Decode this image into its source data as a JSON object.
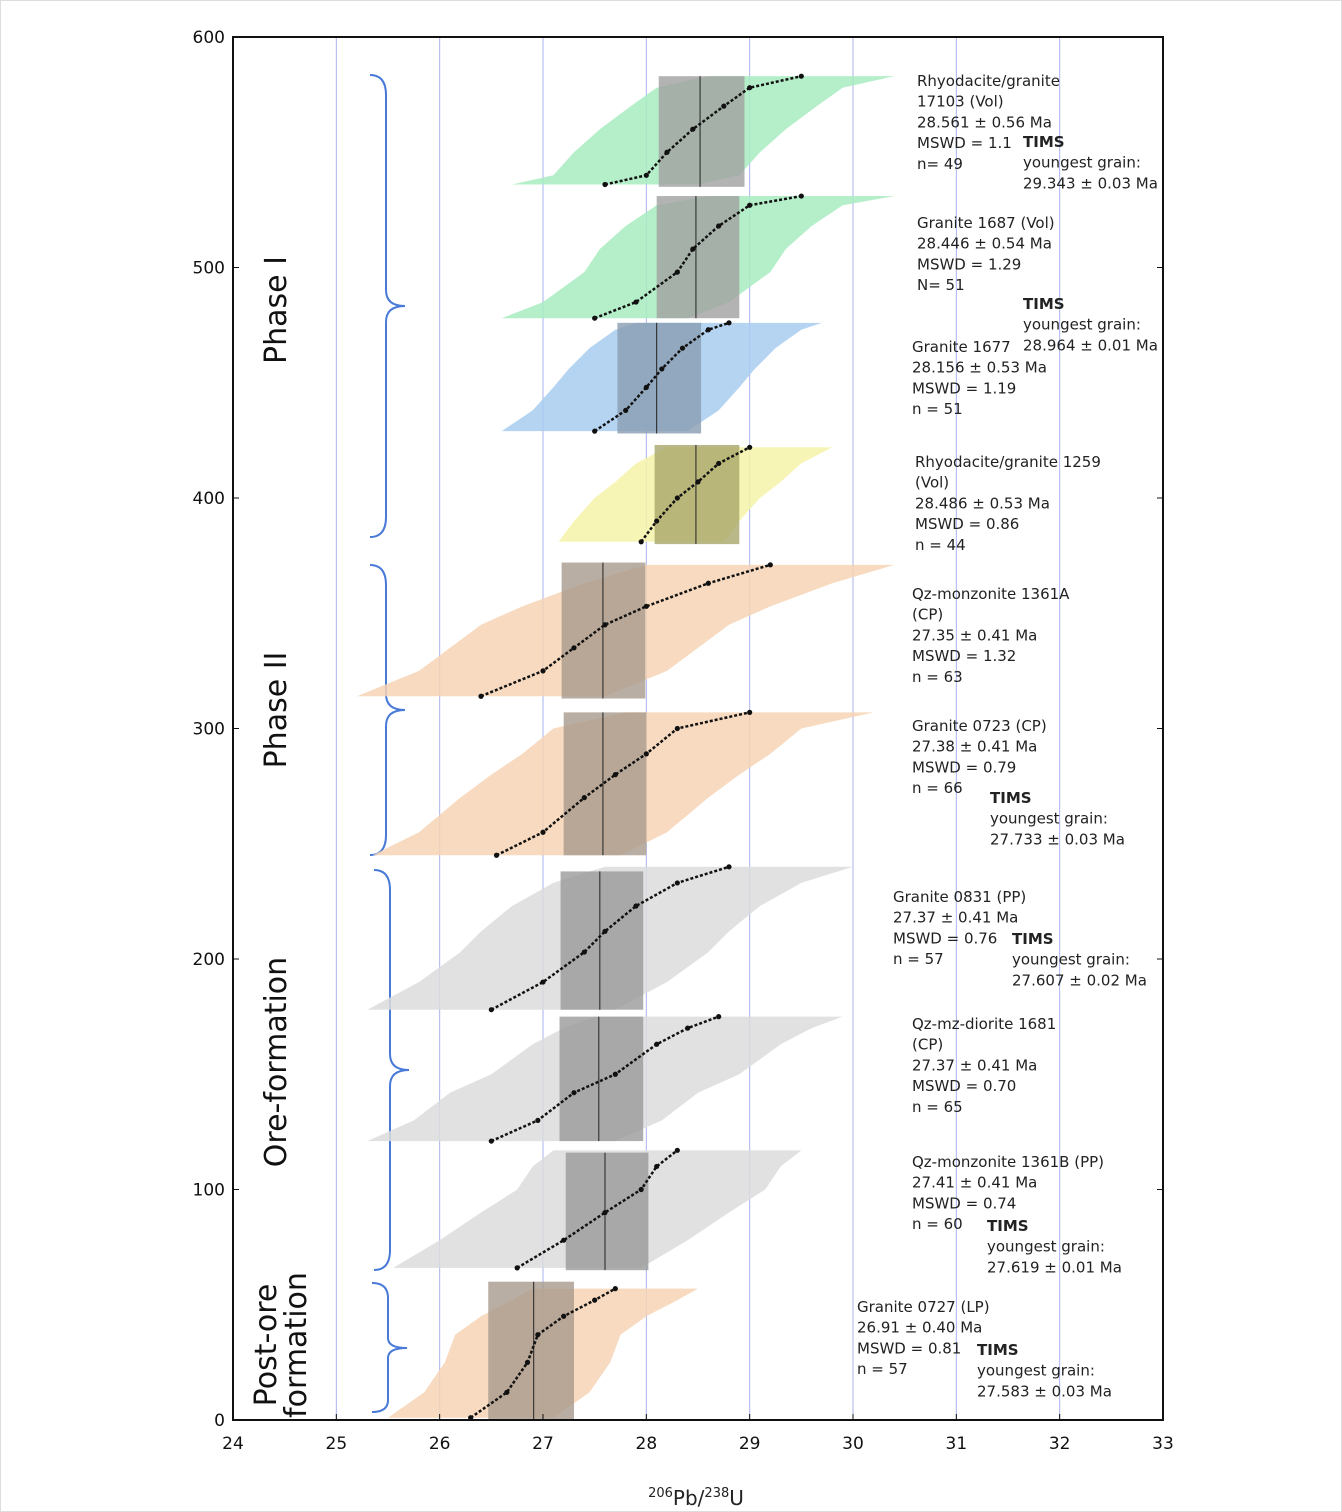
{
  "chart_data": {
    "type": "ranked-age",
    "xlabel_parts": [
      "206",
      "Pb/",
      "238",
      "U"
    ],
    "xlim": [
      24,
      33
    ],
    "xticks": [
      24,
      25,
      26,
      27,
      28,
      29,
      30,
      31,
      32,
      33
    ],
    "ylim": [
      0,
      600
    ],
    "yticks": [
      0,
      100,
      200,
      300,
      400,
      500,
      600
    ],
    "grid": true,
    "grid_color": "#aab4ee",
    "groups": [
      "Phase I",
      "Phase II",
      "Ore-formation",
      [
        "Post-ore",
        "formation"
      ]
    ],
    "samples": [
      {
        "label": [
          "Rhyodacite/granite",
          "17103 (Vol)",
          "28.561 ± 0.56 Ma",
          "MSWD = 1.1",
          "n= 49"
        ],
        "tims": [
          "TIMS",
          "youngest grain:",
          "29.343 ± 0.03 Ma"
        ],
        "y_range": [
          535,
          583
        ],
        "box": [
          28.12,
          28.95
        ],
        "mean": 28.52,
        "error_halfwidth": 0.9,
        "color": "#a8ecc0",
        "box_color": "#a0a0a0",
        "curve": {
          "x": [
            27.6,
            28.0,
            28.2,
            28.45,
            28.75,
            29.0,
            29.5
          ],
          "y": [
            536,
            540,
            550,
            560,
            570,
            578,
            583
          ]
        }
      },
      {
        "label": [
          "Granite 1687 (Vol)",
          "28.446 ± 0.54 Ma",
          "MSWD = 1.29",
          "N= 51"
        ],
        "tims": [
          "TIMS",
          "youngest grain:",
          "28.964 ± 0.01 Ma"
        ],
        "y_range": [
          478,
          531
        ],
        "box": [
          28.1,
          28.9
        ],
        "mean": 28.48,
        "error_halfwidth": 0.9,
        "color": "#a8ecc0",
        "box_color": "#a0a0a0",
        "curve": {
          "x": [
            27.5,
            27.9,
            28.3,
            28.45,
            28.7,
            29.0,
            29.5
          ],
          "y": [
            478,
            485,
            498,
            508,
            518,
            527,
            531
          ]
        }
      },
      {
        "label": [
          "Granite 1677",
          "28.156 ± 0.53 Ma",
          "MSWD = 1.19",
          "n = 51"
        ],
        "y_range": [
          428,
          476
        ],
        "box": [
          27.72,
          28.53
        ],
        "mean": 28.1,
        "error_halfwidth": 0.9,
        "color": "#a8cdf0",
        "box_color": "#8a9cb0",
        "curve": {
          "x": [
            27.5,
            27.8,
            28.0,
            28.15,
            28.35,
            28.6,
            28.8
          ],
          "y": [
            429,
            438,
            448,
            456,
            465,
            473,
            476
          ]
        }
      },
      {
        "label": [
          "Rhyodacite/granite 1259",
          "(Vol)",
          "28.486 ± 0.53 Ma",
          "MSWD = 0.86",
          "n = 44"
        ],
        "y_range": [
          380,
          423
        ],
        "box": [
          28.08,
          28.9
        ],
        "mean": 28.48,
        "error_halfwidth": 0.8,
        "color": "#f6f3a8",
        "box_color": "#a8a66a",
        "curve": {
          "x": [
            27.95,
            28.1,
            28.3,
            28.5,
            28.7,
            29.0
          ],
          "y": [
            381,
            390,
            400,
            407,
            415,
            422
          ]
        }
      },
      {
        "label": [
          "Qz-monzonite 1361A",
          "(CP)",
          "27.35 ± 0.41 Ma",
          "MSWD = 1.32",
          "n = 63"
        ],
        "y_range": [
          313,
          372
        ],
        "box": [
          27.18,
          27.99
        ],
        "mean": 27.58,
        "error_halfwidth": 1.2,
        "color": "#f6d4b4",
        "box_color": "#a89a8c",
        "curve": {
          "x": [
            26.4,
            27.0,
            27.3,
            27.6,
            28.0,
            28.6,
            29.2
          ],
          "y": [
            314,
            325,
            335,
            345,
            353,
            363,
            371
          ]
        }
      },
      {
        "label": [
          "Granite 0723 (CP)",
          "27.38 ± 0.41 Ma",
          "MSWD = 0.79",
          "n = 66"
        ],
        "tims": [
          "TIMS",
          "youngest grain:",
          "27.733 ± 0.03 Ma"
        ],
        "y_range": [
          245,
          307
        ],
        "box": [
          27.2,
          28.0
        ],
        "mean": 27.58,
        "error_halfwidth": 1.2,
        "color": "#f6d4b4",
        "box_color": "#a89a8c",
        "curve": {
          "x": [
            26.55,
            27.0,
            27.4,
            27.7,
            28.0,
            28.3,
            29.0
          ],
          "y": [
            245,
            255,
            270,
            280,
            289,
            300,
            307
          ]
        }
      },
      {
        "label": [
          "Granite 0831 (PP)",
          "27.37 ± 0.41 Ma",
          "MSWD = 0.76",
          "n = 57"
        ],
        "tims": [
          "TIMS",
          "youngest grain:",
          "27.607 ± 0.02 Ma"
        ],
        "y_range": [
          178,
          238
        ],
        "box": [
          27.17,
          27.97
        ],
        "mean": 27.55,
        "error_halfwidth": 1.2,
        "color": "#dcdcdc",
        "box_color": "#9a9a9a",
        "curve": {
          "x": [
            26.5,
            27.0,
            27.4,
            27.6,
            27.9,
            28.3,
            28.8
          ],
          "y": [
            178,
            190,
            203,
            212,
            223,
            233,
            240
          ]
        }
      },
      {
        "label": [
          "Qz-mz-diorite 1681",
          "(CP)",
          "27.37 ± 0.41 Ma",
          "MSWD = 0.70",
          "n = 65"
        ],
        "y_range": [
          121,
          175
        ],
        "box": [
          27.16,
          27.97
        ],
        "mean": 27.54,
        "error_halfwidth": 1.2,
        "color": "#dcdcdc",
        "box_color": "#9a9a9a",
        "curve": {
          "x": [
            26.5,
            26.95,
            27.3,
            27.7,
            28.1,
            28.4,
            28.7
          ],
          "y": [
            121,
            130,
            142,
            150,
            163,
            170,
            175
          ]
        }
      },
      {
        "label": [
          "Qz-monzonite 1361B (PP)",
          "27.41 ± 0.41 Ma",
          "MSWD = 0.74",
          "n = 60"
        ],
        "tims": [
          "TIMS",
          "youngest grain:",
          "27.619 ± 0.01 Ma"
        ],
        "y_range": [
          65,
          116
        ],
        "box": [
          27.22,
          28.02
        ],
        "mean": 27.6,
        "error_halfwidth": 1.2,
        "color": "#dcdcdc",
        "box_color": "#9a9a9a",
        "curve": {
          "x": [
            26.75,
            27.2,
            27.6,
            27.95,
            28.1,
            28.3
          ],
          "y": [
            66,
            78,
            90,
            100,
            110,
            117
          ]
        }
      },
      {
        "label": [
          "Granite 0727 (LP)",
          "26.91 ± 0.40 Ma",
          "MSWD = 0.81",
          "n = 57"
        ],
        "tims": [
          "TIMS",
          "youngest grain:",
          "27.583 ± 0.03 Ma"
        ],
        "y_range": [
          0,
          60
        ],
        "box": [
          26.47,
          27.3
        ],
        "mean": 26.91,
        "error_halfwidth": 0.8,
        "color": "#f6d4b4",
        "box_color": "#a89a8c",
        "curve": {
          "x": [
            26.3,
            26.65,
            26.85,
            26.95,
            27.2,
            27.5,
            27.7
          ],
          "y": [
            1,
            12,
            25,
            37,
            45,
            52,
            57
          ]
        }
      }
    ]
  }
}
